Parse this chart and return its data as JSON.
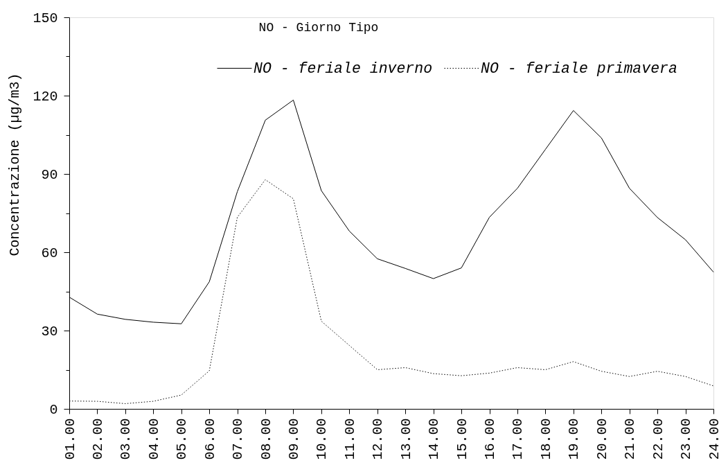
{
  "chart_data": {
    "type": "line",
    "title": "NO - Giorno Tipo",
    "ylabel": "Concentrazione (µg/m3)",
    "categories": [
      "01.00",
      "02.00",
      "03.00",
      "04.00",
      "05.00",
      "06.00",
      "07.00",
      "08.00",
      "09.00",
      "10.00",
      "11.00",
      "12.00",
      "13.00",
      "14.00",
      "15.00",
      "16.00",
      "17.00",
      "18.00",
      "19.00",
      "20.00",
      "21.00",
      "22.00",
      "23.00",
      "24.00"
    ],
    "series": [
      {
        "name": "NO - feriale inverno",
        "color": "#000000",
        "line_style": "solid",
        "values": [
          42.8,
          36.3,
          34.3,
          33.2,
          32.6,
          48.7,
          83.2,
          110.6,
          118.3,
          83.6,
          68.1,
          57.5,
          53.8,
          49.9,
          54.0,
          73.4,
          84.5,
          99.4,
          114.3,
          103.8,
          84.5,
          73.3,
          64.8,
          52.4
        ]
      },
      {
        "name": "NO - feriale primavera",
        "color": "#000000",
        "line_style": "dotted",
        "values": [
          3.0,
          2.9,
          2.0,
          2.9,
          5.3,
          14.6,
          73.4,
          87.8,
          80.5,
          33.6,
          24.3,
          15.0,
          15.8,
          13.5,
          12.7,
          13.7,
          15.8,
          15.0,
          18.1,
          14.4,
          12.4,
          14.4,
          12.4,
          8.8
        ]
      }
    ],
    "ylim": [
      0,
      150
    ],
    "yticks": [
      0,
      {
        "value": 15,
        "label": null
      },
      30,
      {
        "value": 45,
        "label": null
      },
      60,
      {
        "value": 75,
        "label": null
      },
      90,
      {
        "value": 105,
        "label": null
      },
      120,
      {
        "value": 135,
        "label": null
      },
      150
    ],
    "legend": "top right"
  }
}
